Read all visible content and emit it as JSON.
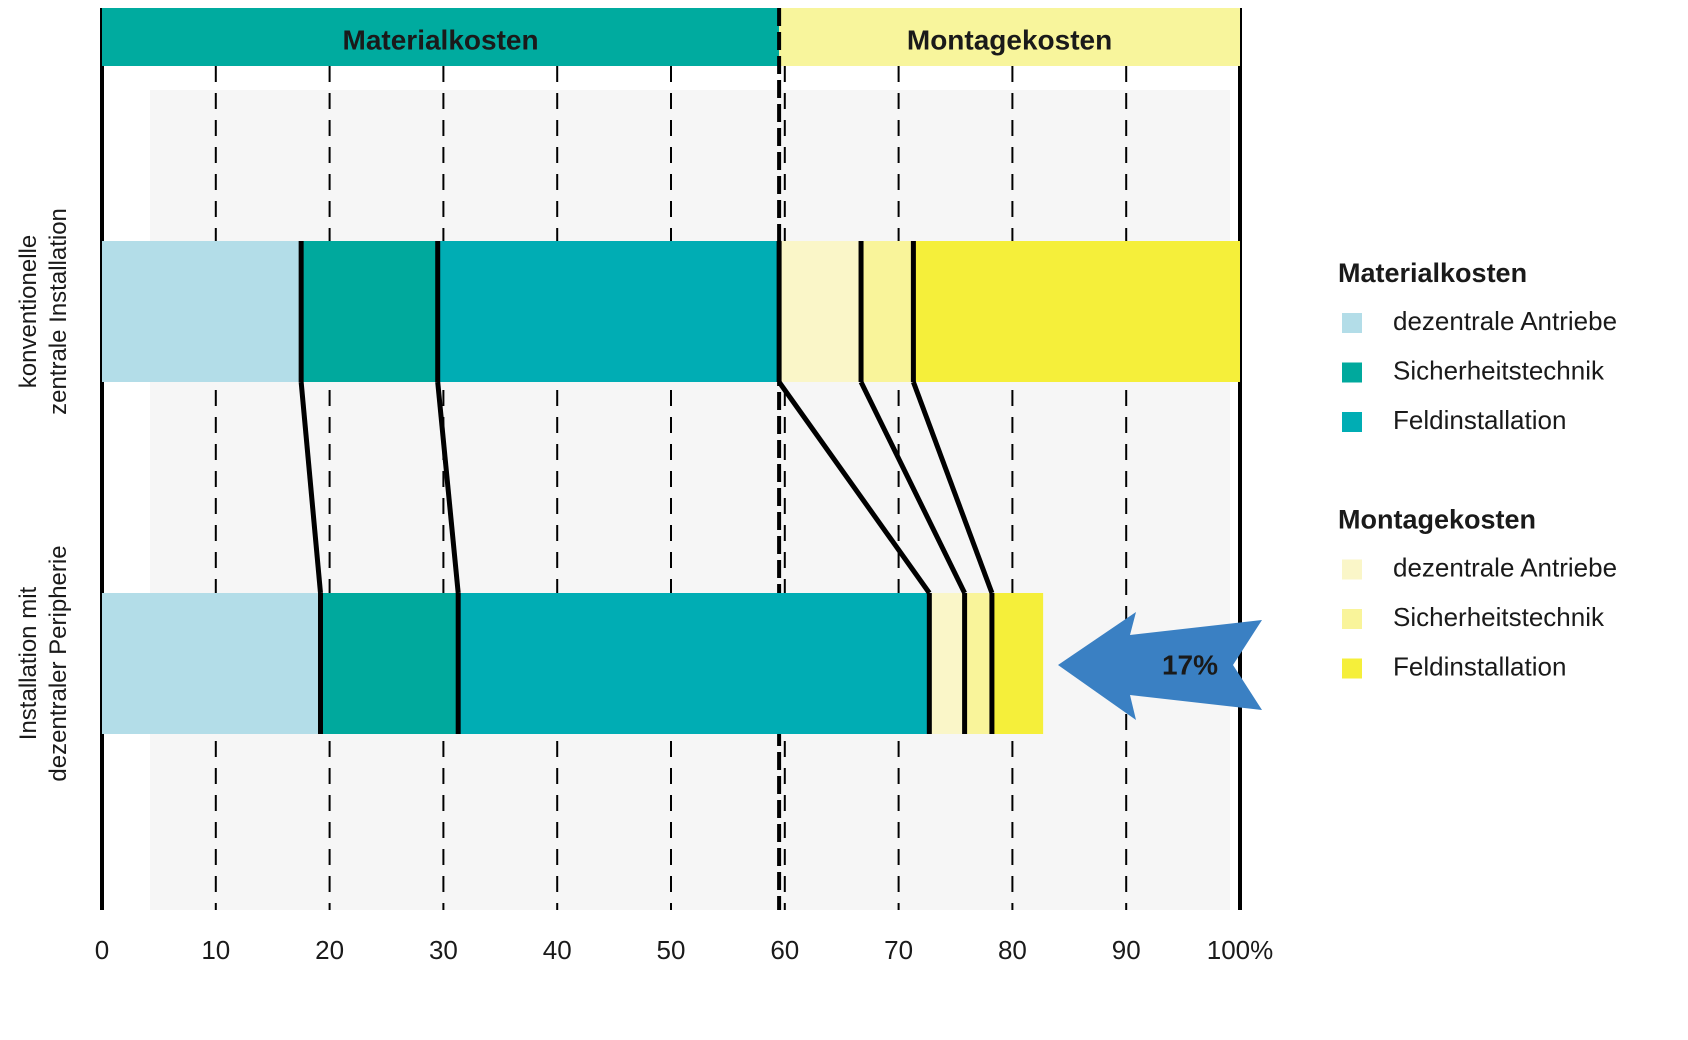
{
  "chart_data": {
    "type": "stacked-bar-horizontal",
    "categories": [
      "konventionelle\nzentrale Installation",
      "Installation mit\ndezentraler Peripherie"
    ],
    "groups": [
      {
        "name": "Materialkosten",
        "color": "#00ab9f",
        "range": [
          0,
          59.5
        ]
      },
      {
        "name": "Montagekosten",
        "color": "#f8f59c",
        "range": [
          59.5,
          100
        ]
      }
    ],
    "series": [
      {
        "name": "dezentrale Antriebe",
        "group": 0,
        "color": "#b3dde8",
        "values": [
          17.5,
          19.2
        ]
      },
      {
        "name": "Sicherheitstechnik",
        "group": 0,
        "color": "#00a99d",
        "values": [
          12,
          12.1
        ]
      },
      {
        "name": "Feldinstallation",
        "group": 0,
        "color": "#00adb4",
        "values": [
          30,
          41.4
        ]
      },
      {
        "name": "dezentrale Antriebe",
        "group": 1,
        "color": "#faf6c8",
        "values": [
          7.2,
          3.1
        ]
      },
      {
        "name": "Sicherheitstechnik",
        "group": 1,
        "color": "#f9f49a",
        "values": [
          4.6,
          2.4
        ]
      },
      {
        "name": "Feldinstallation",
        "group": 1,
        "color": "#f5ef3a",
        "values": [
          28.7,
          4.5
        ]
      }
    ],
    "xlim": [
      0,
      100
    ],
    "xticks": [
      0,
      10,
      20,
      30,
      40,
      50,
      60,
      70,
      80,
      90,
      {
        "value": 100,
        "label": "100%"
      }
    ],
    "grid": true,
    "annotation": {
      "text": "17%",
      "color": "#3a80c3"
    }
  }
}
